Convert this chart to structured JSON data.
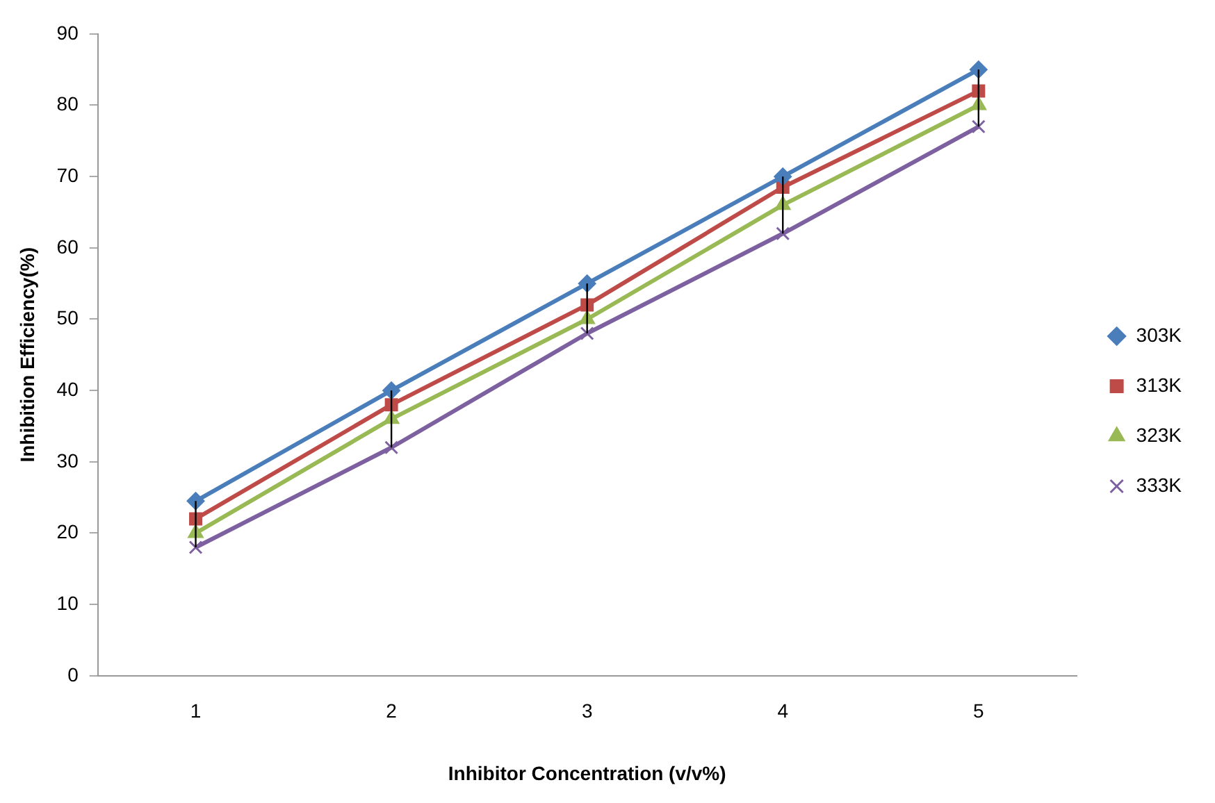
{
  "chart_data": {
    "type": "line",
    "xlabel": "Inhibitor Concentration (v/v%)",
    "ylabel": "Inhibition Efficiency(%)",
    "categories": [
      "1",
      "2",
      "3",
      "4",
      "5"
    ],
    "series": [
      {
        "name": "303K",
        "color": "#4a7ebb",
        "marker": "diamond",
        "values": [
          24.5,
          40,
          55,
          70,
          85
        ],
        "errors": [
          [
            18,
            24.5
          ],
          [
            32,
            40
          ],
          [
            48,
            55
          ],
          [
            62,
            70
          ],
          [
            77,
            85
          ]
        ]
      },
      {
        "name": "313K",
        "color": "#be4b48",
        "marker": "square",
        "values": [
          22,
          38,
          52,
          68.5,
          82
        ]
      },
      {
        "name": "323K",
        "color": "#98b954",
        "marker": "triangle",
        "values": [
          20,
          36,
          50,
          66,
          80
        ]
      },
      {
        "name": "333K",
        "color": "#7d60a0",
        "marker": "cross",
        "values": [
          18,
          32,
          48,
          62,
          77
        ]
      }
    ],
    "ylim": [
      0,
      90
    ],
    "yticks": [
      0,
      10,
      20,
      30,
      40,
      50,
      60,
      70,
      80,
      90
    ],
    "grid": false,
    "legend": "right"
  }
}
